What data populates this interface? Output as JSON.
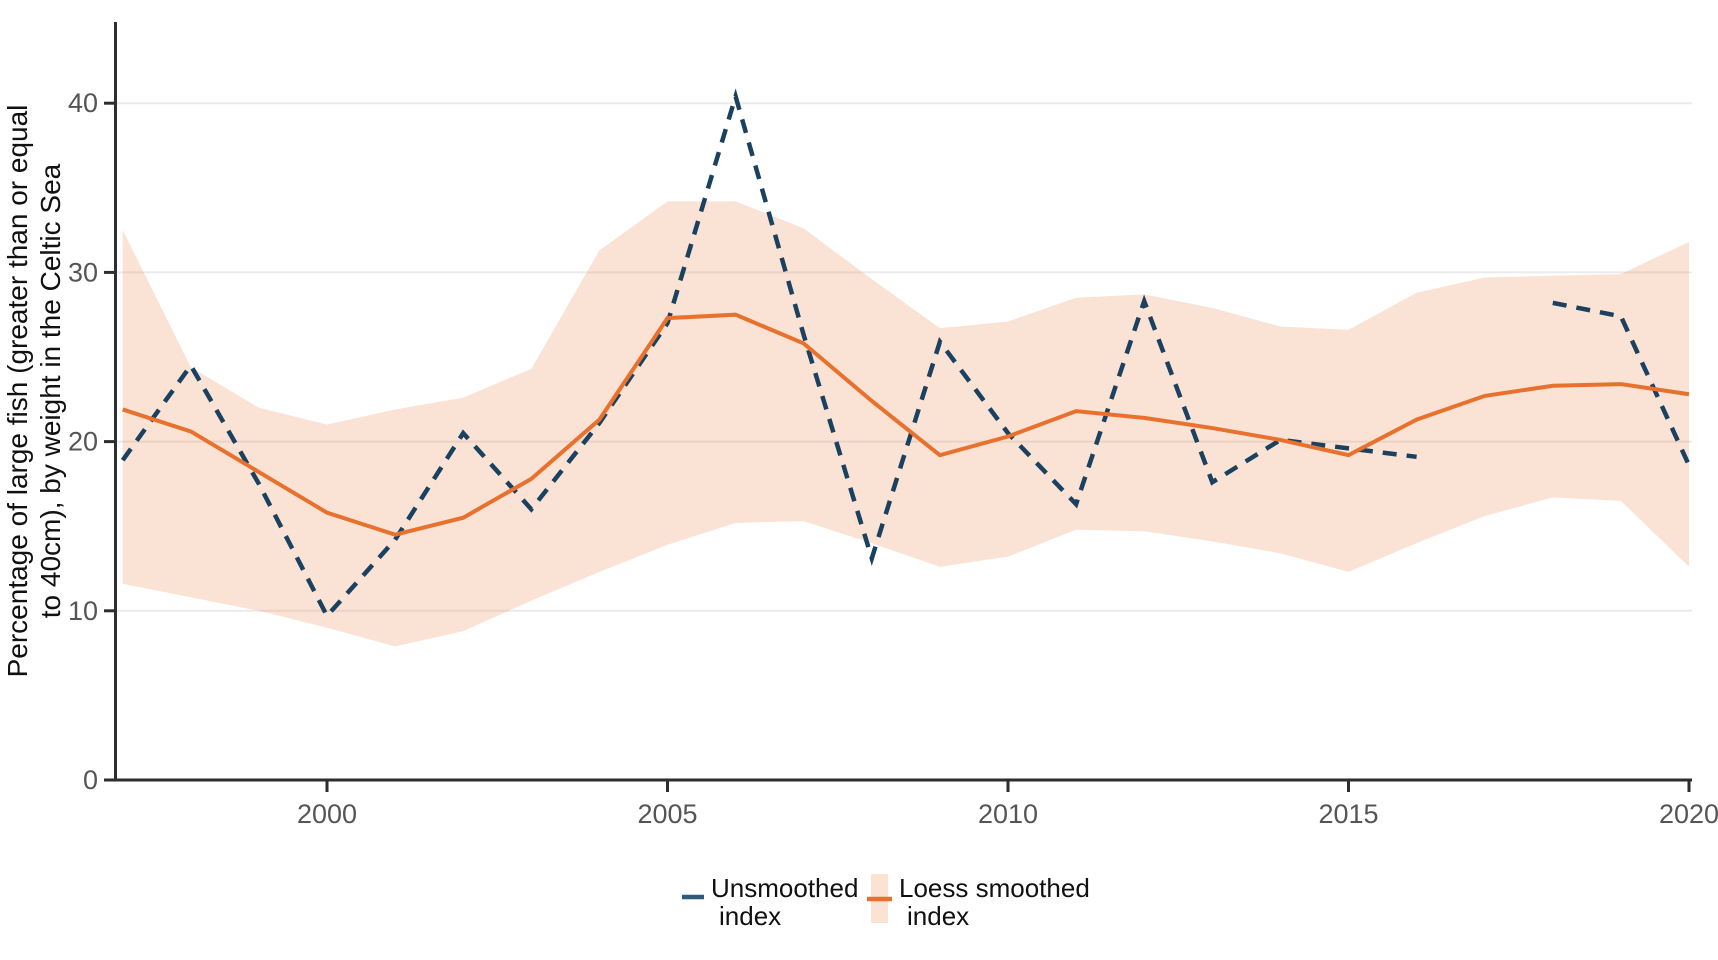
{
  "figure": {
    "y_axis_label_line1": "Percentage of large fish (greater than or equal",
    "y_axis_label_line2": "to 40cm), by weight in the Celtic Sea"
  },
  "legend": {
    "entries": [
      {
        "label_line1": "Unsmoothed",
        "label_line2": "index",
        "key_color": "#31597a"
      },
      {
        "label_line1": "Loess smoothed",
        "label_line2": "index",
        "line_color": "#e7712d",
        "fill_color": "#fbe2d3"
      }
    ]
  },
  "style": {
    "gridline_color": "#ebebeb",
    "axis_color": "#2e2e2e",
    "tick_label_color": "#555555",
    "unsmoothed_color": "#1a415f",
    "loess_color": "#e7712d",
    "ribbon_fill": "#e7702e",
    "ribbon_opacity": 0.2
  },
  "chart_data": {
    "type": "line",
    "title": "",
    "xlabel": "",
    "ylabel": "Percentage of large fish (greater than or equal to 40cm), by weight in the Celtic Sea",
    "xlim": [
      1997,
      2020
    ],
    "ylim": [
      0,
      44.8
    ],
    "x_ticks": [
      2000,
      2005,
      2010,
      2015,
      2020
    ],
    "x_tick_labels": [
      "2000",
      "2005",
      "2010",
      "2015",
      "2020"
    ],
    "y_ticks": [
      0,
      10,
      20,
      30,
      40
    ],
    "y_tick_labels": [
      "0",
      "10",
      "20",
      "30",
      "40"
    ],
    "grid": "horizontal-only",
    "legend_position": "bottom-center",
    "x": [
      1997,
      1998,
      1999,
      2000,
      2001,
      2002,
      2003,
      2004,
      2005,
      2006,
      2007,
      2008,
      2009,
      2010,
      2011,
      2012,
      2013,
      2014,
      2015,
      2016,
      2017,
      2018,
      2019,
      2020
    ],
    "series": [
      {
        "name": "Unsmoothed index",
        "type": "line",
        "style": "dashed",
        "color": "#1a415f",
        "values": [
          18.9,
          24.5,
          17.5,
          9.7,
          14.2,
          20.5,
          16.0,
          21.1,
          27.0,
          40.4,
          26.3,
          13.1,
          25.9,
          20.5,
          16.3,
          28.3,
          17.6,
          20.1,
          19.6,
          19.1,
          null,
          28.2,
          27.4,
          18.6
        ]
      },
      {
        "name": "Loess smoothed index",
        "type": "line",
        "style": "solid",
        "color": "#e7712d",
        "values": [
          21.9,
          20.6,
          18.2,
          15.8,
          14.5,
          15.5,
          17.8,
          21.3,
          27.3,
          27.5,
          25.8,
          22.4,
          19.2,
          20.3,
          21.8,
          21.4,
          20.8,
          20.1,
          19.2,
          21.3,
          22.7,
          23.3,
          23.4,
          22.8
        ]
      },
      {
        "name": "Loess smoothed index confidence band",
        "type": "ribbon",
        "fill": "#e7702e",
        "fill_opacity": 0.2,
        "upper": [
          32.5,
          24.4,
          22.0,
          21.0,
          21.9,
          22.6,
          24.3,
          31.3,
          34.2,
          34.2,
          32.6,
          29.6,
          26.7,
          27.1,
          28.5,
          28.7,
          27.9,
          26.8,
          26.6,
          28.8,
          29.7,
          29.8,
          29.9,
          31.8
        ],
        "lower": [
          11.6,
          10.8,
          10.0,
          9.0,
          7.9,
          8.8,
          10.6,
          12.3,
          13.9,
          15.2,
          15.3,
          14.0,
          12.6,
          13.2,
          14.8,
          14.7,
          14.1,
          13.4,
          12.3,
          14.0,
          15.6,
          16.7,
          16.5,
          12.6
        ]
      }
    ]
  }
}
